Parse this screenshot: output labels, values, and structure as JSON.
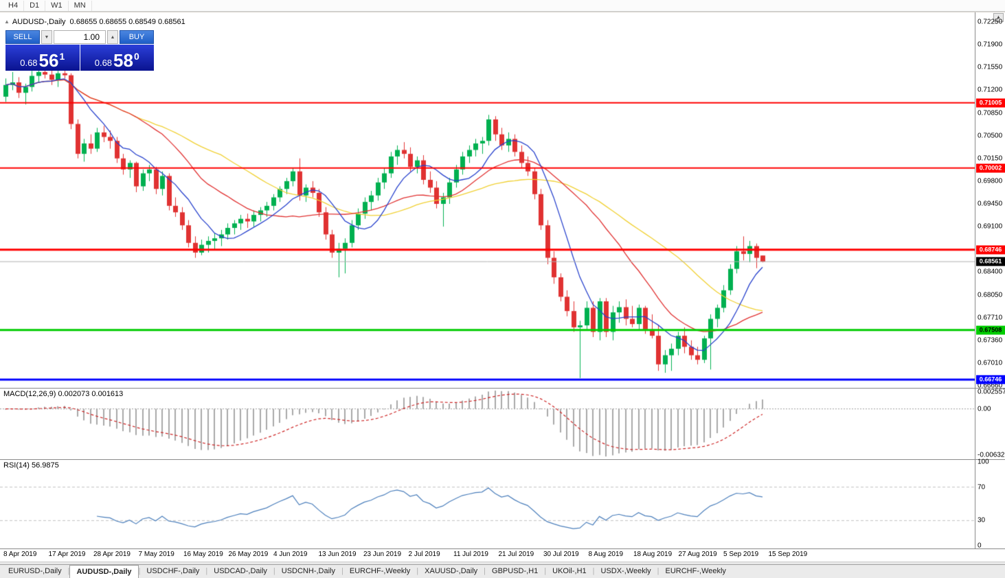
{
  "toolbar": {
    "timeframes": [
      "H4",
      "D1",
      "W1",
      "MN"
    ]
  },
  "icons": {
    "marker": "▲",
    "volume_down": "▼",
    "volume_up": "▲",
    "scroll_up": "▲"
  },
  "symbol_line": {
    "title": "AUDUSD-,Daily",
    "ohlc": "0.68655 0.68655 0.68549 0.68561"
  },
  "trade_panel": {
    "sell_label": "SELL",
    "buy_label": "BUY",
    "volume": "1.00",
    "sell_price": {
      "prefix": "0.68",
      "big": "56",
      "sup": "1"
    },
    "buy_price": {
      "prefix": "0.68",
      "big": "58",
      "sup": "0"
    }
  },
  "chart_data": {
    "type": "candlestick",
    "title": "AUDUSD-,Daily",
    "price_axis_top": 0.7225,
    "price_axis_bottom": 0.6666,
    "price_axis_step": 0.0035,
    "price_axis_labels": [
      "0.72250",
      "0.71900",
      "0.71550",
      "0.71200",
      "0.70850",
      "0.70500",
      "0.70150",
      "0.69800",
      "0.69450",
      "0.69100",
      "0.68740",
      "0.68400",
      "0.68050",
      "0.67710",
      "0.67360",
      "0.67010",
      "0.66660"
    ],
    "time_labels": [
      "8 Apr 2019",
      "17 Apr 2019",
      "28 Apr 2019",
      "7 May 2019",
      "16 May 2019",
      "26 May 2019",
      "4 Jun 2019",
      "13 Jun 2019",
      "23 Jun 2019",
      "2 Jul 2019",
      "11 Jul 2019",
      "21 Jul 2019",
      "30 Jul 2019",
      "8 Aug 2019",
      "18 Aug 2019",
      "27 Aug 2019",
      "5 Sep 2019",
      "15 Sep 2019"
    ],
    "colors": {
      "bull": "#00b050",
      "bear": "#e03232",
      "bid_line": "#b0b0b0"
    },
    "moving_averages": [
      {
        "period": 34,
        "color": "#f0d032"
      },
      {
        "period": 21,
        "color": "#e03030"
      },
      {
        "period": 8,
        "color": "#2640cc"
      }
    ],
    "levels": [
      {
        "price": 0.71005,
        "color": "#ff0000",
        "text_color": "#ffffff",
        "width": 2
      },
      {
        "price": 0.70002,
        "color": "#ff0000",
        "text_color": "#ffffff",
        "width": 2
      },
      {
        "price": 0.68746,
        "color": "#ff0000",
        "text_color": "#ffffff",
        "width": 3
      },
      {
        "price": 0.67508,
        "color": "#00cc00",
        "text_color": "#000000",
        "width": 3
      },
      {
        "price": 0.66746,
        "color": "#0000ff",
        "text_color": "#ffffff",
        "width": 3
      }
    ],
    "current_price": {
      "value": 0.68561,
      "bg": "#000000",
      "text_color": "#ffffff"
    },
    "candles": [
      [
        0.711,
        0.7138,
        0.7102,
        0.7128
      ],
      [
        0.7128,
        0.7148,
        0.712,
        0.7132
      ],
      [
        0.7132,
        0.714,
        0.7108,
        0.7116
      ],
      [
        0.7116,
        0.713,
        0.7098,
        0.7125
      ],
      [
        0.7125,
        0.715,
        0.7118,
        0.7142
      ],
      [
        0.7142,
        0.7155,
        0.7132,
        0.7148
      ],
      [
        0.7148,
        0.7158,
        0.7138,
        0.7144
      ],
      [
        0.7144,
        0.7152,
        0.7128,
        0.7136
      ],
      [
        0.7136,
        0.715,
        0.7125,
        0.7146
      ],
      [
        0.7146,
        0.7152,
        0.7138,
        0.7143
      ],
      [
        0.7143,
        0.7146,
        0.706,
        0.7068
      ],
      [
        0.7068,
        0.7075,
        0.7015,
        0.7022
      ],
      [
        0.7022,
        0.7045,
        0.701,
        0.7038
      ],
      [
        0.7038,
        0.7052,
        0.7022,
        0.703
      ],
      [
        0.703,
        0.7062,
        0.7025,
        0.7055
      ],
      [
        0.7055,
        0.7065,
        0.704,
        0.7048
      ],
      [
        0.7048,
        0.7058,
        0.703,
        0.7042
      ],
      [
        0.7042,
        0.7048,
        0.7008,
        0.7015
      ],
      [
        0.7015,
        0.7022,
        0.699,
        0.6998
      ],
      [
        0.6998,
        0.7012,
        0.6985,
        0.7008
      ],
      [
        0.7008,
        0.701,
        0.6963,
        0.6972
      ],
      [
        0.6972,
        0.6998,
        0.6965,
        0.6992
      ],
      [
        0.6992,
        0.7005,
        0.698,
        0.6998
      ],
      [
        0.6998,
        0.7002,
        0.696,
        0.6968
      ],
      [
        0.6968,
        0.6995,
        0.6958,
        0.6988
      ],
      [
        0.6988,
        0.6992,
        0.6935,
        0.6942
      ],
      [
        0.6942,
        0.6955,
        0.6925,
        0.6932
      ],
      [
        0.6932,
        0.694,
        0.6905,
        0.6912
      ],
      [
        0.6912,
        0.692,
        0.6878,
        0.6885
      ],
      [
        0.6885,
        0.6895,
        0.6862,
        0.687
      ],
      [
        0.687,
        0.689,
        0.6866,
        0.6882
      ],
      [
        0.6882,
        0.6895,
        0.687,
        0.6888
      ],
      [
        0.6888,
        0.69,
        0.6875,
        0.6892
      ],
      [
        0.6892,
        0.6905,
        0.688,
        0.6898
      ],
      [
        0.6898,
        0.6915,
        0.689,
        0.6908
      ],
      [
        0.6908,
        0.692,
        0.6898,
        0.6915
      ],
      [
        0.6915,
        0.6928,
        0.6905,
        0.6922
      ],
      [
        0.6922,
        0.693,
        0.6908,
        0.6918
      ],
      [
        0.6918,
        0.6935,
        0.691,
        0.6928
      ],
      [
        0.6928,
        0.694,
        0.6918,
        0.6935
      ],
      [
        0.6935,
        0.6948,
        0.6925,
        0.6942
      ],
      [
        0.6942,
        0.696,
        0.6935,
        0.6955
      ],
      [
        0.6955,
        0.6972,
        0.6948,
        0.6968
      ],
      [
        0.6968,
        0.6985,
        0.696,
        0.698
      ],
      [
        0.698,
        0.7,
        0.6972,
        0.6995
      ],
      [
        0.6995,
        0.7015,
        0.695,
        0.6958
      ],
      [
        0.6958,
        0.6975,
        0.6948,
        0.697
      ],
      [
        0.697,
        0.698,
        0.6955,
        0.6962
      ],
      [
        0.6962,
        0.6968,
        0.6925,
        0.6932
      ],
      [
        0.6932,
        0.694,
        0.689,
        0.6898
      ],
      [
        0.6898,
        0.6905,
        0.6862,
        0.687
      ],
      [
        0.687,
        0.6885,
        0.6832,
        0.6876
      ],
      [
        0.6876,
        0.6892,
        0.6838,
        0.6885
      ],
      [
        0.6885,
        0.692,
        0.6878,
        0.6912
      ],
      [
        0.6912,
        0.6938,
        0.6905,
        0.693
      ],
      [
        0.693,
        0.6955,
        0.6922,
        0.6948
      ],
      [
        0.6948,
        0.6965,
        0.6935,
        0.6958
      ],
      [
        0.6958,
        0.6985,
        0.695,
        0.6978
      ],
      [
        0.6978,
        0.7,
        0.6968,
        0.6992
      ],
      [
        0.6992,
        0.7025,
        0.6985,
        0.7018
      ],
      [
        0.7018,
        0.7035,
        0.7005,
        0.7028
      ],
      [
        0.7028,
        0.704,
        0.7015,
        0.7022
      ],
      [
        0.7022,
        0.7032,
        0.6995,
        0.7002
      ],
      [
        0.7002,
        0.7018,
        0.6992,
        0.7012
      ],
      [
        0.7012,
        0.702,
        0.6975,
        0.6982
      ],
      [
        0.6982,
        0.6995,
        0.6962,
        0.697
      ],
      [
        0.697,
        0.698,
        0.6938,
        0.6945
      ],
      [
        0.6945,
        0.6962,
        0.691,
        0.6955
      ],
      [
        0.6955,
        0.6985,
        0.6945,
        0.6978
      ],
      [
        0.6978,
        0.7005,
        0.697,
        0.6998
      ],
      [
        0.6998,
        0.7025,
        0.699,
        0.7018
      ],
      [
        0.7018,
        0.7035,
        0.7008,
        0.7028
      ],
      [
        0.7028,
        0.7045,
        0.7018,
        0.7038
      ],
      [
        0.7038,
        0.7048,
        0.7022,
        0.7042
      ],
      [
        0.7042,
        0.7082,
        0.7035,
        0.7075
      ],
      [
        0.7075,
        0.708,
        0.7042,
        0.7052
      ],
      [
        0.7052,
        0.7062,
        0.7028,
        0.7035
      ],
      [
        0.7035,
        0.7055,
        0.7025,
        0.7045
      ],
      [
        0.7045,
        0.7052,
        0.7018,
        0.7025
      ],
      [
        0.7025,
        0.7035,
        0.7,
        0.7008
      ],
      [
        0.7008,
        0.7018,
        0.6988,
        0.6995
      ],
      [
        0.6995,
        0.7,
        0.6952,
        0.696
      ],
      [
        0.696,
        0.6968,
        0.6905,
        0.6912
      ],
      [
        0.6912,
        0.692,
        0.6852,
        0.6862
      ],
      [
        0.6862,
        0.6872,
        0.6822,
        0.6832
      ],
      [
        0.6832,
        0.6838,
        0.6795,
        0.6802
      ],
      [
        0.6802,
        0.6812,
        0.6772,
        0.678
      ],
      [
        0.678,
        0.6795,
        0.6748,
        0.6755
      ],
      [
        0.6755,
        0.6765,
        0.6677,
        0.6758
      ],
      [
        0.6758,
        0.6795,
        0.6752,
        0.6785
      ],
      [
        0.6785,
        0.6795,
        0.674,
        0.6748
      ],
      [
        0.6748,
        0.68,
        0.6735,
        0.6795
      ],
      [
        0.6795,
        0.68,
        0.674,
        0.6748
      ],
      [
        0.6748,
        0.6788,
        0.6735,
        0.6778
      ],
      [
        0.6778,
        0.6795,
        0.6762,
        0.6786
      ],
      [
        0.6786,
        0.6798,
        0.6758,
        0.6768
      ],
      [
        0.6768,
        0.6788,
        0.6755,
        0.676
      ],
      [
        0.676,
        0.679,
        0.6752,
        0.6785
      ],
      [
        0.6785,
        0.6788,
        0.6745,
        0.6752
      ],
      [
        0.6752,
        0.6775,
        0.6738,
        0.6742
      ],
      [
        0.6742,
        0.6758,
        0.6688,
        0.6698
      ],
      [
        0.6698,
        0.672,
        0.6685,
        0.6712
      ],
      [
        0.6712,
        0.673,
        0.6688,
        0.6722
      ],
      [
        0.6722,
        0.6748,
        0.6712,
        0.6742
      ],
      [
        0.6742,
        0.6755,
        0.6715,
        0.6725
      ],
      [
        0.6725,
        0.6735,
        0.6705,
        0.6712
      ],
      [
        0.6712,
        0.6725,
        0.6698,
        0.6705
      ],
      [
        0.6705,
        0.6742,
        0.67,
        0.6738
      ],
      [
        0.6738,
        0.6775,
        0.669,
        0.6768
      ],
      [
        0.6768,
        0.679,
        0.6755,
        0.6785
      ],
      [
        0.6785,
        0.682,
        0.6778,
        0.6812
      ],
      [
        0.6812,
        0.6852,
        0.6805,
        0.6845
      ],
      [
        0.6845,
        0.688,
        0.6838,
        0.6872
      ],
      [
        0.6872,
        0.6895,
        0.6858,
        0.6868
      ],
      [
        0.6868,
        0.6888,
        0.6855,
        0.688
      ],
      [
        0.688,
        0.6884,
        0.6846,
        0.6862
      ],
      [
        0.68655,
        0.68655,
        0.68549,
        0.68561
      ]
    ],
    "macd": {
      "label": "MACD(12,26,9) 0.002073 0.001613",
      "fast": 12,
      "slow": 26,
      "signal": 9,
      "axis_top": "0.0025574",
      "axis_zero": "0.00",
      "axis_bottom": "-0.0063226",
      "bar_color": "#a8a8a8",
      "signal_color": "#cc2222"
    },
    "rsi": {
      "label": "RSI(14) 56.9875",
      "period": 14,
      "axis_labels": [
        "100",
        "70",
        "30",
        "0"
      ],
      "levels": [
        70,
        30
      ],
      "line_color": "#4a7ebb"
    }
  },
  "tabs": {
    "items": [
      "EURUSD-,Daily",
      "AUDUSD-,Daily",
      "USDCHF-,Daily",
      "USDCAD-,Daily",
      "USDCNH-,Daily",
      "EURCHF-,Weekly",
      "XAUUSD-,Daily",
      "GBPUSD-,H1",
      "UKOil-,H1",
      "USDX-,Weekly",
      "EURCHF-,Weekly"
    ],
    "active_index": 1
  }
}
